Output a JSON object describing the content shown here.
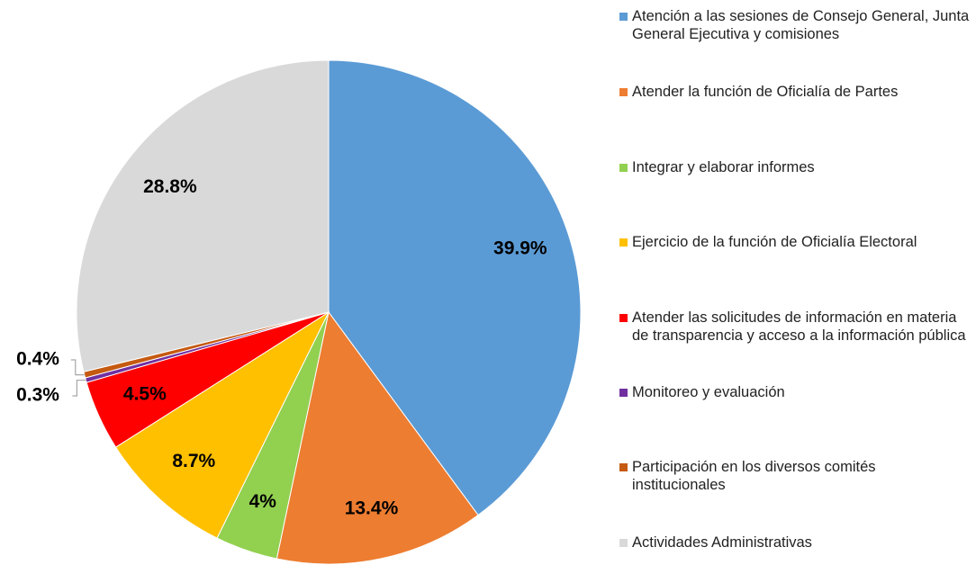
{
  "chart_data": {
    "type": "pie",
    "categories": [
      "Atención a las sesiones de Consejo General,  Junta General Ejecutiva y comisiones",
      "Atender la función de Oficialía de Partes",
      "Integrar y elaborar informes",
      "Ejercicio de la función de Oficialía Electoral",
      "Atender las solicitudes de información en materia de transparencia y acceso a la información pública",
      "Monitoreo y evaluación",
      "Participación en los diversos comités institucionales",
      "Actividades Administrativas"
    ],
    "values": [
      39.9,
      13.4,
      4,
      8.7,
      4.5,
      0.3,
      0.4,
      28.8
    ],
    "value_labels": [
      "39.9%",
      "13.4%",
      "4%",
      "8.7%",
      "4.5%",
      "0.3%",
      "0.4%",
      "28.8%"
    ],
    "colors": [
      "#5b9bd5",
      "#ed7d31",
      "#92d050",
      "#ffc000",
      "#ff0000",
      "#7030a0",
      "#c55a11",
      "#d9d9d9"
    ]
  }
}
